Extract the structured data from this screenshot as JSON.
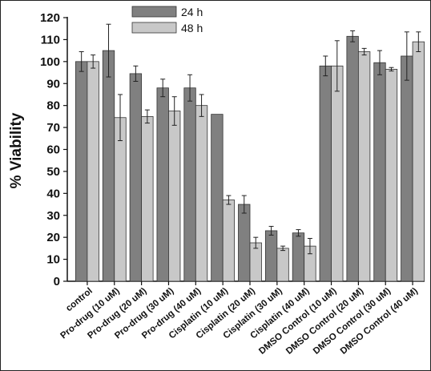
{
  "chart_data": {
    "type": "bar",
    "title": "",
    "xlabel": "",
    "ylabel": "% Viability",
    "ylim": [
      0,
      120
    ],
    "yticks": [
      0,
      10,
      20,
      30,
      40,
      50,
      60,
      70,
      80,
      90,
      100,
      110,
      120
    ],
    "grid": false,
    "legend_position": "top-center",
    "categories": [
      "control",
      "Pro-drug (10 uM)",
      "Pro-drug (20 uM)",
      "Pro-drug (30 uM)",
      "Pro-drug (40 uM)",
      "Cisplatin (10 uM)",
      "Cisplatin (20 uM)",
      "Cisplatin (30 uM)",
      "Cisplatin (40 uM)",
      "DMSO Control (10 uM)",
      "DMSO Control (20 uM)",
      "DMSO Control (30 uM)",
      "DMSO Control (40 uM)"
    ],
    "series": [
      {
        "name": "24 h",
        "color": "#808080",
        "values": [
          100,
          105,
          94.5,
          88,
          88,
          76,
          35,
          23,
          22,
          98,
          111.5,
          99.5,
          102.5
        ],
        "errors": [
          4.5,
          12,
          3.5,
          4,
          6,
          null,
          4,
          2,
          1.5,
          4.5,
          2.5,
          5.5,
          11
        ]
      },
      {
        "name": "48 h",
        "color": "#c8c8c8",
        "values": [
          100,
          74.5,
          75,
          77.5,
          80,
          37,
          17.5,
          15,
          16,
          98,
          104.5,
          96.5,
          109
        ],
        "errors": [
          3,
          10.5,
          3,
          6.5,
          5,
          2,
          2.5,
          1,
          3.5,
          11.5,
          1.5,
          0.8,
          4.5
        ]
      }
    ]
  }
}
